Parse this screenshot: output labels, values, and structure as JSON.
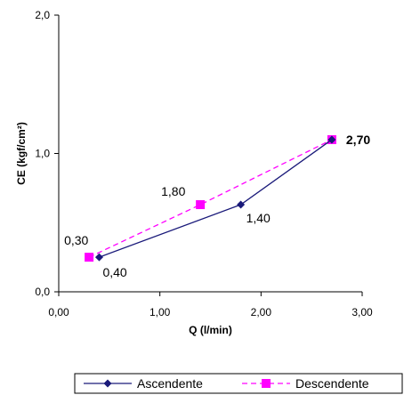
{
  "chart_data": {
    "type": "line",
    "xlabel": "Q (l/min)",
    "ylabel": "CE (kgf/cm²)",
    "xlim": [
      0,
      3
    ],
    "ylim": [
      0,
      2
    ],
    "x_ticks": [
      {
        "value": 0,
        "label": "0,00"
      },
      {
        "value": 1,
        "label": "1,00"
      },
      {
        "value": 2,
        "label": "2,00"
      },
      {
        "value": 3,
        "label": "3,00"
      }
    ],
    "y_ticks": [
      {
        "value": 0,
        "label": "0,0"
      },
      {
        "value": 1,
        "label": "1,0"
      },
      {
        "value": 2,
        "label": "2,0"
      }
    ],
    "grid": false,
    "legend_position": "bottom-right",
    "series": [
      {
        "name": "Ascendente",
        "color": "#1a1a7a",
        "line_style": "solid",
        "marker": "diamond",
        "points": [
          {
            "x": 0.4,
            "y": 0.25
          },
          {
            "x": 1.8,
            "y": 0.63
          },
          {
            "x": 2.7,
            "y": 1.1
          }
        ]
      },
      {
        "name": "Descendente",
        "color": "#ff00ff",
        "line_style": "dashed",
        "marker": "square",
        "points": [
          {
            "x": 0.3,
            "y": 0.25
          },
          {
            "x": 1.4,
            "y": 0.63
          },
          {
            "x": 2.7,
            "y": 1.1
          }
        ]
      }
    ],
    "annotations": [
      {
        "text": "0,30",
        "x": 0.3,
        "y": 0.25
      },
      {
        "text": "0,40",
        "x": 0.4,
        "y": 0.25
      },
      {
        "text": "1,80",
        "x": 1.4,
        "y": 0.63
      },
      {
        "text": "1,40",
        "x": 1.8,
        "y": 0.63
      },
      {
        "text": "2,70",
        "x": 2.7,
        "y": 1.1,
        "bold": true
      }
    ]
  }
}
